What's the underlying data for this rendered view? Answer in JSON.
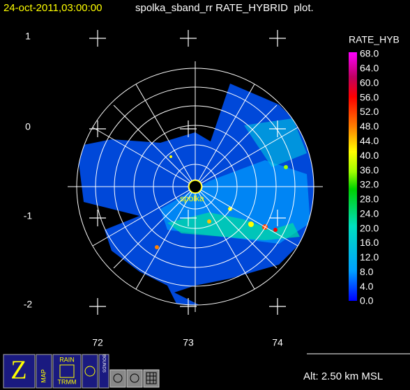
{
  "header": {
    "date": "24-oct-2011,03:00:00",
    "title": "spolka_sband_rr RATE_HYBRID  plot."
  },
  "y_labels": [
    "1",
    "0",
    "-1",
    "-2"
  ],
  "x_labels": [
    "72",
    "73",
    "74"
  ],
  "colorbar": {
    "title": "RATE_HYB",
    "labels": [
      "68.0",
      "64.0",
      "60.0",
      "56.0",
      "52.0",
      "48.0",
      "44.0",
      "40.0",
      "36.0",
      "32.0",
      "28.0",
      "24.0",
      "20.0",
      "16.0",
      "12.0",
      "8.0",
      "4.0",
      "0.0"
    ]
  },
  "station": "spolka",
  "altitude": "Alt: 2.50 km MSL",
  "toolbar": {
    "map": "MAP",
    "rain": "RAIN",
    "trmm": "TRMM",
    "bounds": "BOUNDS"
  }
}
